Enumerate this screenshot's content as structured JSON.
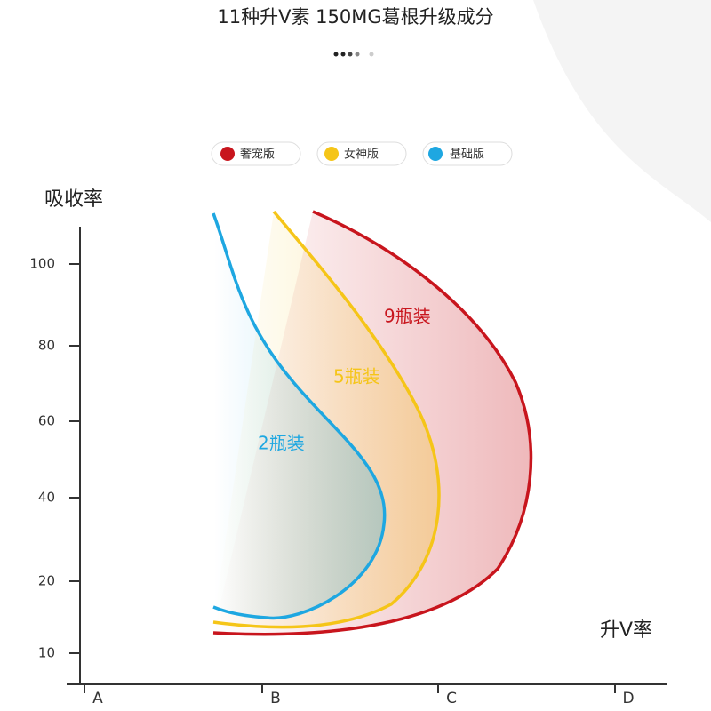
{
  "header": {
    "title": "11种升V素 150MG葛根升级成分"
  },
  "legend": [
    {
      "label": "奢宠版",
      "color": "#c8151d"
    },
    {
      "label": "女神版",
      "color": "#f5c518"
    },
    {
      "label": "基础版",
      "color": "#1ea7e1"
    }
  ],
  "axis": {
    "y_title": "吸收率",
    "x_title": "升V率",
    "y_ticks": [
      "100",
      "80",
      "60",
      "40",
      "20",
      "10"
    ],
    "x_ticks": [
      "A",
      "B",
      "C",
      "D"
    ]
  },
  "curves": [
    {
      "label": "9瓶装",
      "color": "#c8151d"
    },
    {
      "label": "5瓶装",
      "color": "#f5c518"
    },
    {
      "label": "2瓶装",
      "color": "#1ea7e1"
    }
  ]
}
